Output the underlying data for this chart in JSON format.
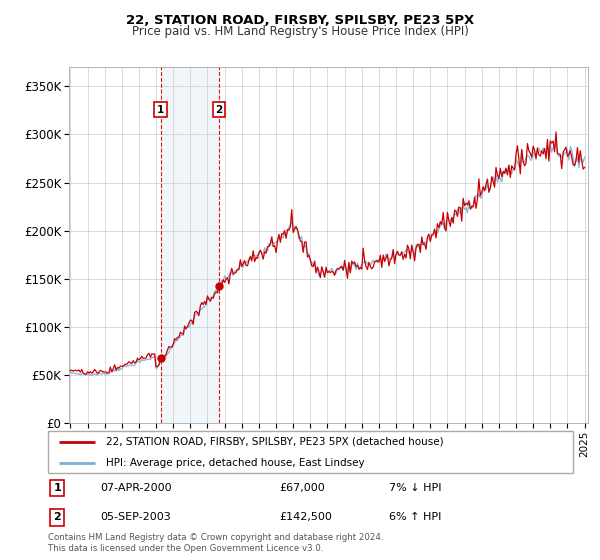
{
  "title": "22, STATION ROAD, FIRSBY, SPILSBY, PE23 5PX",
  "subtitle": "Price paid vs. HM Land Registry's House Price Index (HPI)",
  "ylim": [
    0,
    370000
  ],
  "yticks": [
    0,
    50000,
    100000,
    150000,
    200000,
    250000,
    300000,
    350000
  ],
  "ytick_labels": [
    "£0",
    "£50K",
    "£100K",
    "£150K",
    "£200K",
    "£250K",
    "£300K",
    "£350K"
  ],
  "legend_property_label": "22, STATION ROAD, FIRSBY, SPILSBY, PE23 5PX (detached house)",
  "legend_hpi_label": "HPI: Average price, detached house, East Lindsey",
  "sale1_date": "07-APR-2000",
  "sale1_price": "£67,000",
  "sale1_pct": "7% ↓ HPI",
  "sale1_label": "1",
  "sale2_date": "05-SEP-2003",
  "sale2_price": "£142,500",
  "sale2_pct": "6% ↑ HPI",
  "sale2_label": "2",
  "footer": "Contains HM Land Registry data © Crown copyright and database right 2024.\nThis data is licensed under the Open Government Licence v3.0.",
  "property_color": "#cc0000",
  "hpi_color": "#7aaed6",
  "sale1_year": 2000.27,
  "sale1_price_val": 67000,
  "sale2_year": 2003.68,
  "sale2_price_val": 142500,
  "background_shading_color": "#dce9f5",
  "sale_vline_color": "#cc0000"
}
